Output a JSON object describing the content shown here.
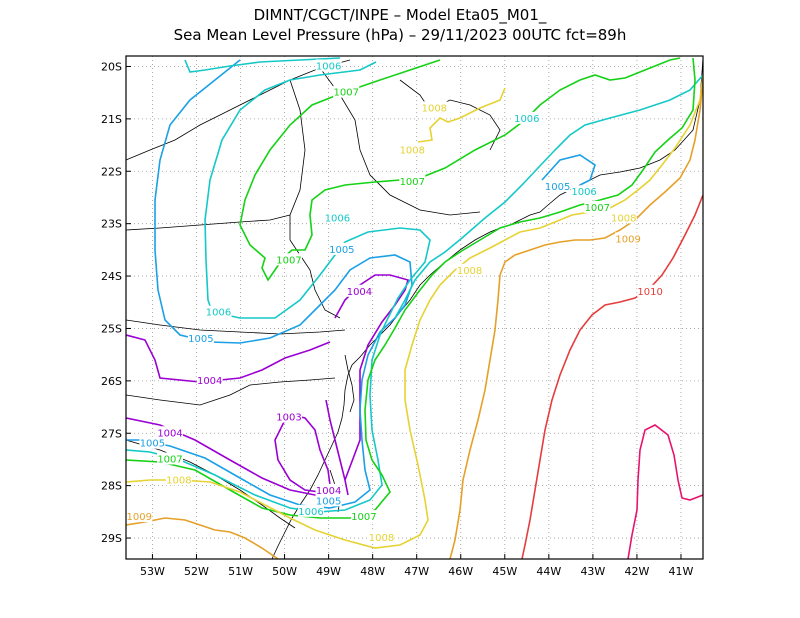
{
  "title": {
    "line1": "DIMNT/CGCT/INPE –  Model Eta05_M01_",
    "line2": "Sea Mean Level Pressure (hPa) – 29/11/2023 00UTC fct=89h"
  },
  "axes": {
    "lon_ticks": [
      "53W",
      "52W",
      "51W",
      "50W",
      "49W",
      "48W",
      "47W",
      "46W",
      "45W",
      "44W",
      "43W",
      "42W",
      "41W"
    ],
    "lat_ticks": [
      "20S",
      "21S",
      "22S",
      "23S",
      "24S",
      "25S",
      "26S",
      "27S",
      "28S",
      "29S"
    ],
    "lon_range": [
      -53.6,
      -40.5
    ],
    "lat_range": [
      -29.4,
      -19.8
    ],
    "grid": true
  },
  "colors": {
    "1003": "#9b00d3",
    "1004": "#9b00d3",
    "1005": "#1aa0e6",
    "1006": "#14c8c8",
    "1007": "#14d214",
    "1008": "#e6d232",
    "1009": "#e6a028",
    "1010": "#e63c3c",
    "1011": "#e6146e",
    "coast": "#000000"
  },
  "contours": [
    {
      "level": "1003",
      "label": "1003",
      "label_at": [
        -49.9,
        -26.7
      ]
    },
    {
      "level": "1004",
      "label": "1004",
      "label_at": [
        -48.3,
        -24.3
      ]
    },
    {
      "level": "1004",
      "label": "1004",
      "label_at": [
        -51.7,
        -26.0
      ]
    },
    {
      "level": "1004",
      "label": "1004",
      "label_at": [
        -52.6,
        -27.0
      ]
    },
    {
      "level": "1004",
      "label": "1004",
      "label_at": [
        -49.0,
        -28.1
      ]
    },
    {
      "level": "1005",
      "label": "1005",
      "label_at": [
        -48.7,
        -23.5
      ]
    },
    {
      "level": "1005",
      "label": "1005",
      "label_at": [
        -51.9,
        -25.2
      ]
    },
    {
      "level": "1005",
      "label": "1005",
      "label_at": [
        -53.0,
        -27.2
      ]
    },
    {
      "level": "1005",
      "label": "1005",
      "label_at": [
        -49.0,
        -28.3
      ]
    },
    {
      "level": "1005",
      "label": "1005",
      "label_at": [
        -43.8,
        -22.3
      ]
    },
    {
      "level": "1006",
      "label": "1006",
      "label_at": [
        -49.0,
        -20.0
      ]
    },
    {
      "level": "1006",
      "label": "1006",
      "label_at": [
        -48.8,
        -22.9
      ]
    },
    {
      "level": "1006",
      "label": "1006",
      "label_at": [
        -51.5,
        -24.7
      ]
    },
    {
      "level": "1006",
      "label": "1006",
      "label_at": [
        -49.4,
        -28.5
      ]
    },
    {
      "level": "1006",
      "label": "1006",
      "label_at": [
        -44.5,
        -21.0
      ]
    },
    {
      "level": "1006",
      "label": "1006",
      "label_at": [
        -43.2,
        -22.4
      ]
    },
    {
      "level": "1007",
      "label": "1007",
      "label_at": [
        -48.6,
        -20.5
      ]
    },
    {
      "level": "1007",
      "label": "1007",
      "label_at": [
        -47.1,
        -22.2
      ]
    },
    {
      "level": "1007",
      "label": "1007",
      "label_at": [
        -49.9,
        -23.7
      ]
    },
    {
      "level": "1007",
      "label": "1007",
      "label_at": [
        -52.6,
        -27.5
      ]
    },
    {
      "level": "1007",
      "label": "1007",
      "label_at": [
        -48.2,
        -28.6
      ]
    },
    {
      "level": "1007",
      "label": "1007",
      "label_at": [
        -42.9,
        -22.7
      ]
    },
    {
      "level": "1008",
      "label": "1008",
      "label_at": [
        -46.6,
        -20.8
      ]
    },
    {
      "level": "1008",
      "label": "1008",
      "label_at": [
        -47.1,
        -21.6
      ]
    },
    {
      "level": "1008",
      "label": "1008",
      "label_at": [
        -45.8,
        -23.9
      ]
    },
    {
      "level": "1008",
      "label": "1008",
      "label_at": [
        -52.4,
        -27.9
      ]
    },
    {
      "level": "1008",
      "label": "1008",
      "label_at": [
        -47.8,
        -29.0
      ]
    },
    {
      "level": "1008",
      "label": "1008",
      "label_at": [
        -42.3,
        -22.9
      ]
    },
    {
      "level": "1009",
      "label": "1009",
      "label_at": [
        -53.3,
        -28.6
      ]
    },
    {
      "level": "1009",
      "label": "1009",
      "label_at": [
        -42.2,
        -23.3
      ]
    },
    {
      "level": "1010",
      "label": "1010",
      "label_at": [
        -41.7,
        -24.3
      ]
    }
  ]
}
